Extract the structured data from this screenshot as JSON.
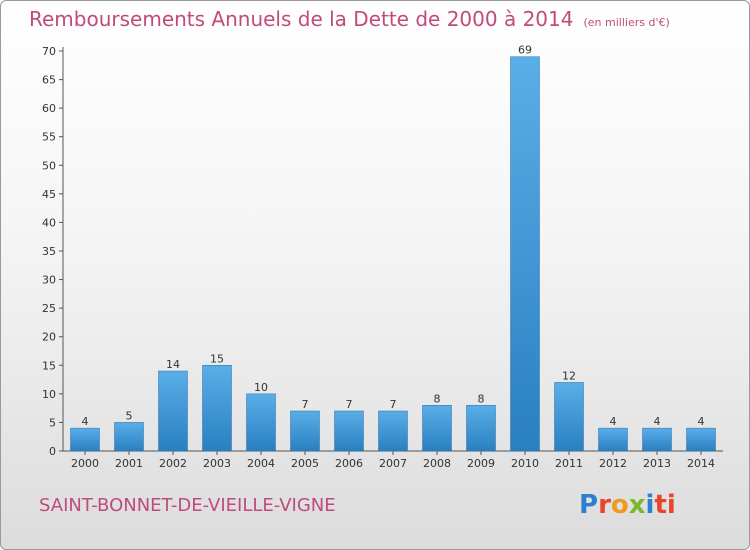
{
  "header": {
    "title": "Remboursements Annuels de la Dette de 2000 à 2014",
    "unit": "(en milliers d'€)"
  },
  "footer": {
    "place": "SAINT-BONNET-DE-VIEILLE-VIGNE",
    "logo_letters": [
      "P",
      "r",
      "o",
      "x",
      "i",
      "ti"
    ]
  },
  "colors": {
    "bar_light": "#5aaee8",
    "bar_dark": "#2a7fc0",
    "title": "#c04b7b"
  },
  "chart_data": {
    "type": "bar",
    "title": "Remboursements Annuels de la Dette de 2000 à 2014",
    "xlabel": "",
    "ylabel": "",
    "categories": [
      "2000",
      "2001",
      "2002",
      "2003",
      "2004",
      "2005",
      "2006",
      "2007",
      "2008",
      "2009",
      "2010",
      "2011",
      "2012",
      "2013",
      "2014"
    ],
    "values": [
      4,
      5,
      14,
      15,
      10,
      7,
      7,
      7,
      8,
      8,
      69,
      12,
      4,
      4,
      4
    ],
    "ylim": [
      0,
      70
    ],
    "yticks": [
      0,
      5,
      10,
      15,
      20,
      25,
      30,
      35,
      40,
      45,
      50,
      55,
      60,
      65,
      70
    ],
    "grid": false,
    "legend": "none"
  }
}
